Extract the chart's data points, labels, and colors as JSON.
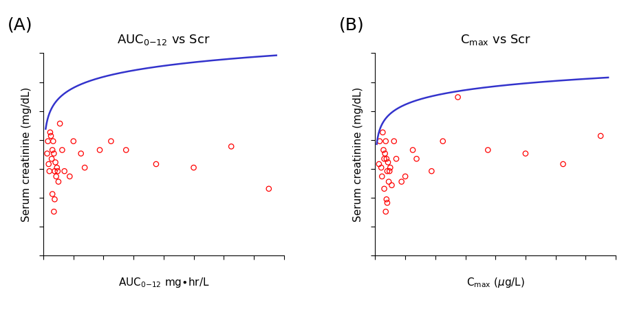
{
  "panel_A": {
    "label": "(A)",
    "ylabel": "Serum creatinine (mg/dL)",
    "curve_x_start": 3,
    "curve_x_end": 310,
    "curve_a": 0.92,
    "curve_b": 0.09,
    "curve_c": 3.0,
    "xlim": [
      0,
      320
    ],
    "ylim": [
      0.2,
      1.35
    ]
  },
  "panel_B": {
    "label": "(B)",
    "ylabel": "Serum creatinine (mg/dL)",
    "curve_x_start": 2,
    "curve_x_end": 310,
    "curve_a": 0.85,
    "curve_b": 0.075,
    "curve_c": 2.5,
    "xlim": [
      0,
      320
    ],
    "ylim": [
      0.2,
      1.35
    ]
  },
  "scatter_A_x": [
    5,
    6,
    7,
    8,
    9,
    10,
    11,
    12,
    13,
    14,
    15,
    16,
    17,
    18,
    19,
    20,
    22,
    25,
    28,
    35,
    40,
    50,
    55,
    75,
    90,
    110,
    150,
    200,
    250,
    300,
    12,
    15,
    14
  ],
  "scatter_A_y": [
    0.78,
    0.85,
    0.72,
    0.68,
    0.9,
    0.88,
    0.75,
    0.8,
    0.85,
    0.78,
    0.68,
    0.73,
    0.65,
    0.7,
    0.68,
    0.62,
    0.95,
    0.8,
    0.68,
    0.65,
    0.85,
    0.78,
    0.7,
    0.8,
    0.85,
    0.8,
    0.72,
    0.7,
    0.82,
    0.58,
    0.55,
    0.52,
    0.45
  ],
  "scatter_B_x": [
    5,
    6,
    8,
    9,
    10,
    11,
    12,
    13,
    14,
    15,
    16,
    17,
    18,
    19,
    20,
    22,
    25,
    28,
    35,
    40,
    50,
    55,
    75,
    90,
    110,
    150,
    200,
    250,
    300,
    12,
    15,
    16,
    14
  ],
  "scatter_B_y": [
    0.72,
    0.85,
    0.7,
    0.65,
    0.9,
    0.8,
    0.75,
    0.78,
    0.85,
    0.75,
    0.68,
    0.73,
    0.62,
    0.68,
    0.7,
    0.6,
    0.85,
    0.75,
    0.62,
    0.65,
    0.8,
    0.75,
    0.68,
    0.85,
    1.1,
    0.8,
    0.78,
    0.72,
    0.88,
    0.58,
    0.52,
    0.5,
    0.45
  ],
  "scatter_color": "#ff0000",
  "scatter_size": 28,
  "curve_color": "#3333cc",
  "curve_linewidth": 1.8,
  "bg_color": "#ffffff",
  "label_fontsize": 18,
  "title_fontsize": 13,
  "axis_label_fontsize": 11
}
